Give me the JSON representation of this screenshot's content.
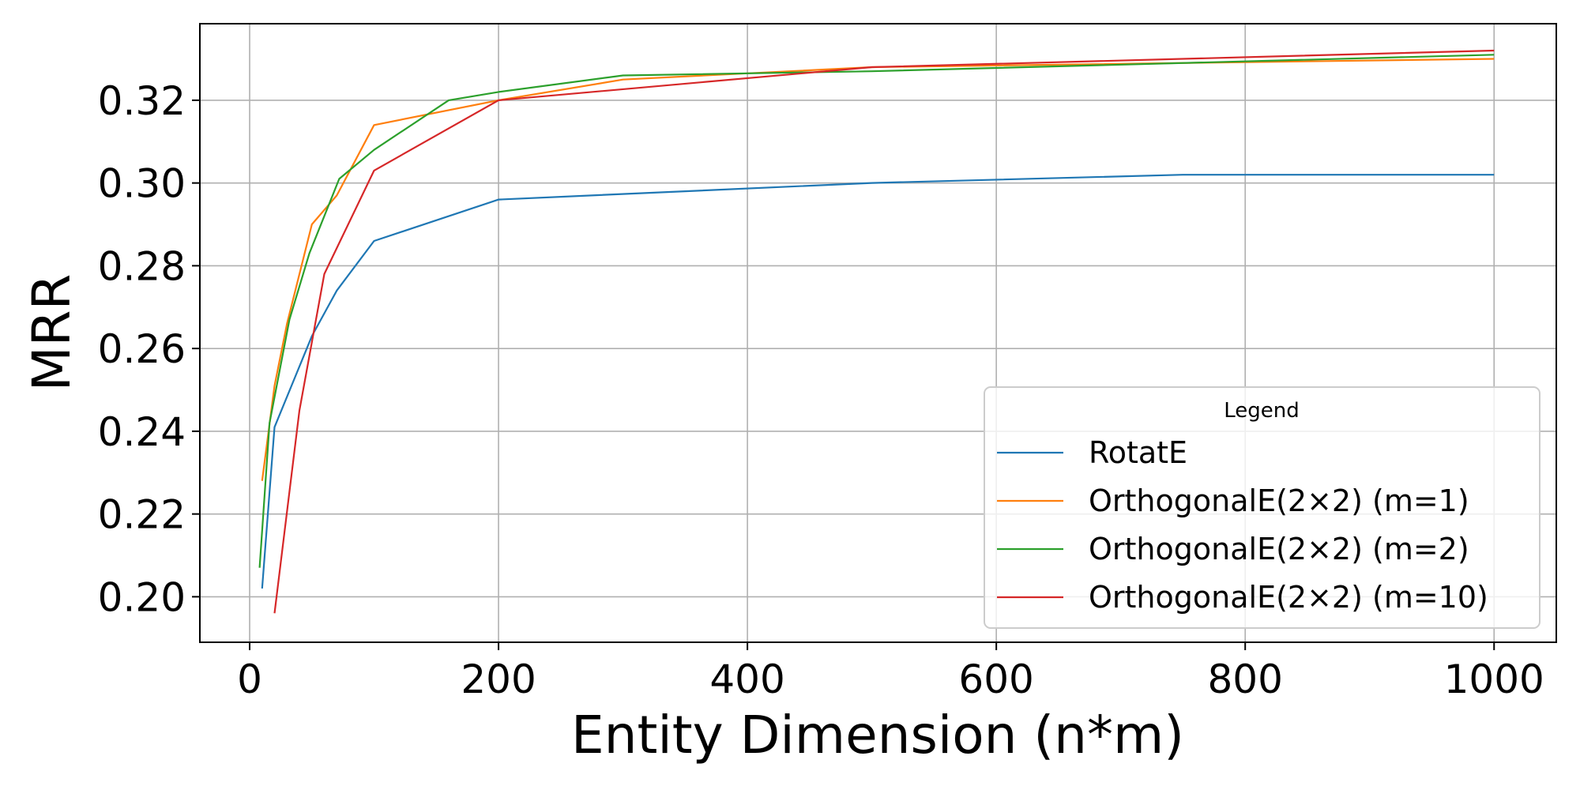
{
  "chart_data": {
    "type": "line",
    "title": "",
    "xlabel": "Entity Dimension (n*m)",
    "ylabel": "MRR",
    "xlim": [
      -40,
      1050
    ],
    "ylim": [
      0.189,
      0.3385
    ],
    "xticks": [
      0,
      200,
      400,
      600,
      800,
      1000
    ],
    "xtick_labels": [
      "0",
      "200",
      "400",
      "600",
      "800",
      "1000"
    ],
    "yticks": [
      0.2,
      0.22,
      0.24,
      0.26,
      0.28,
      0.3,
      0.32
    ],
    "ytick_labels": [
      "0.20",
      "0.22",
      "0.24",
      "0.26",
      "0.28",
      "0.30",
      "0.32"
    ],
    "grid": true,
    "legend": {
      "title": "Legend",
      "position": "lower-right"
    },
    "series": [
      {
        "name": "RotatE",
        "color": "#1f77b4",
        "x": [
          10,
          20,
          50,
          70,
          100,
          200,
          500,
          750,
          1000
        ],
        "y": [
          0.202,
          0.241,
          0.263,
          0.274,
          0.286,
          0.296,
          0.3,
          0.302,
          0.302
        ]
      },
      {
        "name": "OrthogonalE(2×2) (m=1)",
        "color": "#ff7f0e",
        "x": [
          10,
          20,
          30,
          50,
          70,
          100,
          200,
          300,
          500,
          1000
        ],
        "y": [
          0.228,
          0.251,
          0.266,
          0.29,
          0.297,
          0.314,
          0.32,
          0.325,
          0.328,
          0.33
        ]
      },
      {
        "name": "OrthogonalE(2×2) (m=2)",
        "color": "#2ca02c",
        "x": [
          8,
          16,
          32,
          48,
          72,
          100,
          160,
          200,
          300,
          500,
          1000
        ],
        "y": [
          0.207,
          0.242,
          0.267,
          0.283,
          0.301,
          0.308,
          0.32,
          0.322,
          0.326,
          0.327,
          0.331
        ]
      },
      {
        "name": "OrthogonalE(2×2) (m=10)",
        "color": "#d62728",
        "x": [
          20,
          40,
          60,
          100,
          200,
          500,
          1000
        ],
        "y": [
          0.196,
          0.245,
          0.278,
          0.303,
          0.32,
          0.328,
          0.332
        ]
      }
    ]
  }
}
